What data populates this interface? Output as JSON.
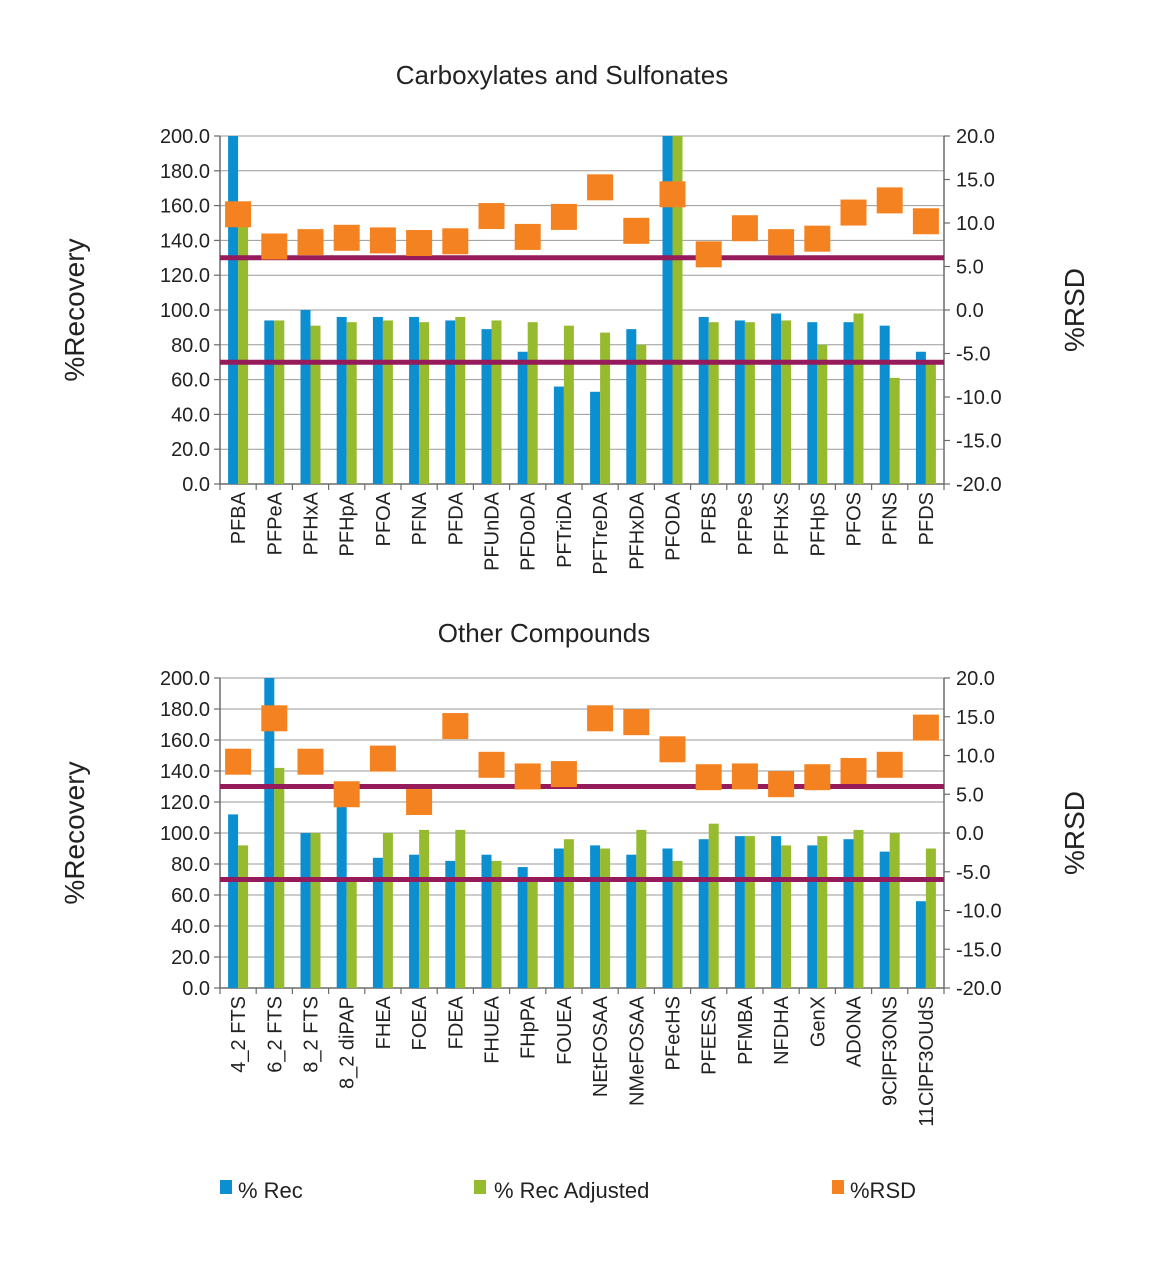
{
  "colors": {
    "rec": "#0b8fd0",
    "rec_adjusted": "#97bb2f",
    "rsd": "#f58220",
    "ref_lines": "#951b5b",
    "axis": "#6b6b6b",
    "grid": "#9a9a9a"
  },
  "legend": {
    "rec": "% Rec",
    "rec_adjusted": "% Rec Adjusted",
    "rsd": "%RSD"
  },
  "chart_data": [
    {
      "type": "bar",
      "title": "Carboxylates and Sulfonates",
      "ylabel": "%Recovery",
      "y2label": "%RSD",
      "ylim": [
        0,
        200
      ],
      "y2lim": [
        -20,
        20
      ],
      "yticks": [
        "0.0",
        "20.0",
        "40.0",
        "60.0",
        "80.0",
        "100.0",
        "120.0",
        "140.0",
        "160.0",
        "180.0",
        "200.0"
      ],
      "y2ticks": [
        "-20.0",
        "-15.0",
        "-10.0",
        "-5.0",
        "0.0",
        "5.0",
        "10.0",
        "15.0",
        "20.0"
      ],
      "grid": true,
      "legend_position": "bottom",
      "reference_lines": [
        130,
        70
      ],
      "categories": [
        "PFBA",
        "PFPeA",
        "PFHxA",
        "PFHpA",
        "PFOA",
        "PFNA",
        "PFDA",
        "PFUnDA",
        "PFDoDA",
        "PFTriDA",
        "PFTreDA",
        "PFHxDA",
        "PFODA",
        "PFBS",
        "PFPeS",
        "PFHxS",
        "PFHpS",
        "PFOS",
        "PFNS",
        "PFDS"
      ],
      "series": [
        {
          "name": "% Rec",
          "axis": "left",
          "values": [
            200,
            94,
            100,
            96,
            96,
            96,
            94,
            89,
            76,
            56,
            53,
            89,
            200,
            96,
            94,
            98,
            93,
            93,
            91,
            76
          ]
        },
        {
          "name": "% Rec Adjusted",
          "axis": "left",
          "values": [
            150,
            94,
            91,
            93,
            94,
            93,
            96,
            94,
            93,
            91,
            87,
            80,
            200,
            93,
            93,
            94,
            80,
            98,
            61,
            70
          ]
        },
        {
          "name": "%RSD",
          "axis": "right",
          "values": [
            11,
            7.3,
            7.8,
            8.3,
            8.0,
            7.7,
            7.9,
            10.8,
            8.4,
            10.7,
            14.1,
            9.1,
            13.3,
            6.4,
            9.4,
            7.8,
            8.2,
            11.2,
            12.6,
            10.2
          ]
        }
      ]
    },
    {
      "type": "bar",
      "title": "Other Compounds",
      "ylabel": "%Recovery",
      "y2label": "%RSD",
      "ylim": [
        0,
        200
      ],
      "y2lim": [
        -20,
        20
      ],
      "yticks": [
        "0.0",
        "20.0",
        "40.0",
        "60.0",
        "80.0",
        "100.0",
        "120.0",
        "140.0",
        "160.0",
        "180.0",
        "200.0"
      ],
      "y2ticks": [
        "-20.0",
        "-15.0",
        "-10.0",
        "-5.0",
        "0.0",
        "5.0",
        "10.0",
        "15.0",
        "20.0"
      ],
      "grid": true,
      "legend_position": "bottom",
      "reference_lines": [
        130,
        70
      ],
      "categories": [
        "4_2 FTS",
        "6_2 FTS",
        "8_2 FTS",
        "8_2 diPAP",
        "FHEA",
        "FOEA",
        "FDEA",
        "FHUEA",
        "FHpPA",
        "FOUEA",
        "NEtFOSAA",
        "NMeFOSAA",
        "PFecHS",
        "PFEESA",
        "PFMBA",
        "NFDHA",
        "GenX",
        "ADONA",
        "9ClPF3ONS",
        "11ClPF3OUdS"
      ],
      "series": [
        {
          "name": "% Rec",
          "axis": "left",
          "values": [
            112,
            200,
            100,
            128,
            84,
            86,
            82,
            86,
            78,
            90,
            92,
            86,
            90,
            96,
            98,
            98,
            92,
            96,
            88,
            56
          ]
        },
        {
          "name": "% Rec Adjusted",
          "axis": "left",
          "values": [
            92,
            142,
            100,
            70,
            100,
            102,
            102,
            82,
            70,
            96,
            90,
            102,
            82,
            106,
            98,
            92,
            98,
            102,
            100,
            90
          ]
        },
        {
          "name": "%RSD",
          "axis": "right",
          "values": [
            9.2,
            14.8,
            9.2,
            5.0,
            9.6,
            4.0,
            13.8,
            8.8,
            7.3,
            7.6,
            14.8,
            14.3,
            10.8,
            7.2,
            7.3,
            6.3,
            7.2,
            8.0,
            8.8,
            13.6
          ]
        }
      ]
    }
  ]
}
